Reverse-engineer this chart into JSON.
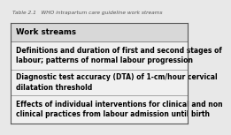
{
  "title": "Table 2.1   WHO intrapartum care guideline work streams",
  "header": "Work streams",
  "rows": [
    "Definitions and duration of first and second stages of\nlabour; patterns of normal labour progression",
    "Diagnostic test accuracy (DTA) of 1-cm/hour cervical\ndilatation threshold",
    "Effects of individual interventions for clinical and non\nclinical practices from labour admission until birth"
  ],
  "header_bg": "#d8d8d8",
  "row_bg": "#f0f0f0",
  "border_color": "#888888",
  "outer_border_color": "#555555",
  "title_fontsize": 4.2,
  "header_fontsize": 6.2,
  "row_fontsize": 5.5,
  "title_color": "#555555",
  "fig_bg": "#e8e8e8"
}
